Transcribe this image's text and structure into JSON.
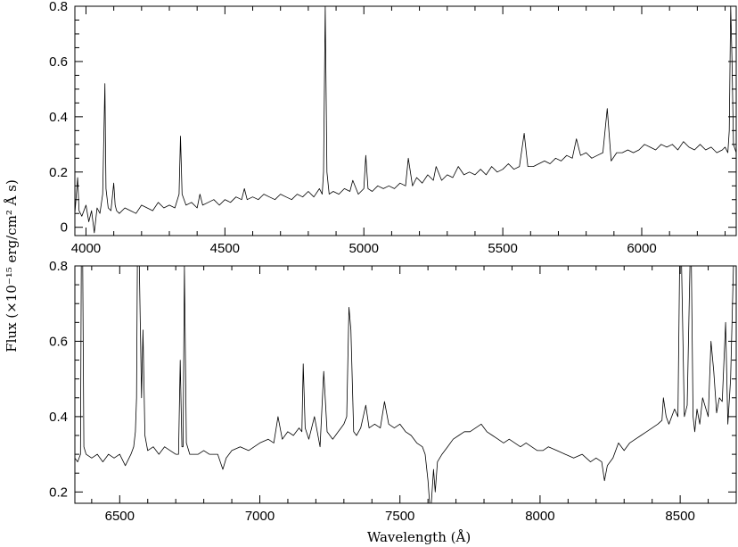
{
  "chart_data": {
    "type": "line",
    "ylabel": "Flux (×10⁻¹⁵ erg/cm² Å s)",
    "xlabel": "Wavelength (Å)",
    "panels": [
      {
        "xlim": [
          3960,
          6340
        ],
        "ylim": [
          -0.03,
          0.8
        ],
        "xticks": [
          4000,
          4500,
          5000,
          5500,
          6000
        ],
        "yticks": [
          0,
          0.2,
          0.4,
          0.6,
          0.8
        ],
        "ytick_labels": [
          "0",
          "0.2",
          "0.4",
          "0.6",
          "0.8"
        ],
        "series": [
          {
            "x": [
              3960,
              3970,
              3975,
              3985,
              4000,
              4010,
              4020,
              4030,
              4040,
              4050,
              4060,
              4068,
              4072,
              4080,
              4090,
              4100,
              4105,
              4110,
              4120,
              4140,
              4160,
              4180,
              4200,
              4220,
              4240,
              4260,
              4280,
              4300,
              4320,
              4335,
              4340,
              4346,
              4360,
              4380,
              4400,
              4410,
              4420,
              4440,
              4460,
              4480,
              4500,
              4520,
              4540,
              4560,
              4570,
              4580,
              4600,
              4620,
              4640,
              4660,
              4680,
              4700,
              4720,
              4740,
              4760,
              4780,
              4800,
              4820,
              4840,
              4850,
              4855,
              4861,
              4867,
              4875,
              4890,
              4910,
              4930,
              4950,
              4960,
              4980,
              5000,
              5007,
              5015,
              5030,
              5050,
              5070,
              5090,
              5110,
              5130,
              5150,
              5160,
              5175,
              5190,
              5210,
              5230,
              5250,
              5260,
              5280,
              5300,
              5320,
              5340,
              5360,
              5380,
              5400,
              5420,
              5440,
              5460,
              5480,
              5500,
              5520,
              5540,
              5560,
              5577,
              5590,
              5610,
              5630,
              5650,
              5670,
              5690,
              5710,
              5730,
              5750,
              5765,
              5780,
              5800,
              5820,
              5840,
              5860,
              5876,
              5890,
              5910,
              5930,
              5950,
              5970,
              5990,
              6010,
              6030,
              6050,
              6070,
              6090,
              6110,
              6130,
              6150,
              6170,
              6190,
              6210,
              6230,
              6250,
              6270,
              6290,
              6300,
              6310,
              6315,
              6320,
              6325,
              6330,
              6340
            ],
            "y": [
              0.05,
              0.18,
              0.06,
              0.04,
              0.08,
              0.02,
              0.06,
              -0.02,
              0.07,
              0.05,
              0.12,
              0.52,
              0.14,
              0.07,
              0.06,
              0.16,
              0.08,
              0.06,
              0.05,
              0.07,
              0.06,
              0.05,
              0.08,
              0.07,
              0.06,
              0.09,
              0.07,
              0.08,
              0.07,
              0.12,
              0.33,
              0.12,
              0.08,
              0.09,
              0.07,
              0.12,
              0.08,
              0.09,
              0.1,
              0.08,
              0.1,
              0.09,
              0.11,
              0.1,
              0.14,
              0.1,
              0.11,
              0.1,
              0.12,
              0.11,
              0.1,
              0.12,
              0.11,
              0.1,
              0.12,
              0.11,
              0.13,
              0.11,
              0.14,
              0.12,
              0.2,
              0.8,
              0.2,
              0.12,
              0.13,
              0.12,
              0.14,
              0.13,
              0.17,
              0.12,
              0.14,
              0.26,
              0.14,
              0.13,
              0.15,
              0.14,
              0.15,
              0.14,
              0.16,
              0.15,
              0.25,
              0.15,
              0.18,
              0.16,
              0.19,
              0.17,
              0.22,
              0.17,
              0.19,
              0.18,
              0.22,
              0.19,
              0.2,
              0.19,
              0.21,
              0.19,
              0.22,
              0.2,
              0.21,
              0.23,
              0.21,
              0.22,
              0.34,
              0.22,
              0.22,
              0.23,
              0.24,
              0.23,
              0.25,
              0.24,
              0.26,
              0.25,
              0.32,
              0.26,
              0.27,
              0.25,
              0.26,
              0.27,
              0.43,
              0.24,
              0.27,
              0.27,
              0.28,
              0.27,
              0.28,
              0.3,
              0.29,
              0.28,
              0.3,
              0.29,
              0.3,
              0.28,
              0.31,
              0.29,
              0.28,
              0.3,
              0.28,
              0.29,
              0.27,
              0.28,
              0.29,
              0.27,
              0.35,
              0.8,
              0.6,
              0.3,
              0.27
            ]
          }
        ]
      },
      {
        "xlim": [
          6340,
          8700
        ],
        "ylim": [
          0.17,
          0.8
        ],
        "xticks": [
          6500,
          7000,
          7500,
          8000,
          8500
        ],
        "yticks": [
          0.2,
          0.4,
          0.6,
          0.8
        ],
        "ytick_labels": [
          "0.2",
          "0.4",
          "0.6",
          "0.8"
        ],
        "series": [
          {
            "x": [
              6340,
              6350,
              6360,
              6363,
              6368,
              6372,
              6380,
              6400,
              6420,
              6440,
              6460,
              6480,
              6500,
              6520,
              6540,
              6550,
              6556,
              6560,
              6563,
              6570,
              6578,
              6583,
              6590,
              6600,
              6620,
              6640,
              6660,
              6680,
              6700,
              6710,
              6716,
              6722,
              6726,
              6731,
              6738,
              6750,
              6780,
              6800,
              6820,
              6850,
              6868,
              6880,
              6900,
              6930,
              6960,
              7000,
              7030,
              7050,
              7065,
              7080,
              7100,
              7120,
              7140,
              7150,
              7155,
              7162,
              7175,
              7195,
              7215,
              7228,
              7240,
              7260,
              7280,
              7300,
              7310,
              7318,
              7325,
              7335,
              7345,
              7360,
              7378,
              7390,
              7410,
              7430,
              7445,
              7460,
              7480,
              7500,
              7520,
              7540,
              7560,
              7580,
              7590,
              7600,
              7606,
              7612,
              7620,
              7626,
              7634,
              7650,
              7670,
              7690,
              7710,
              7730,
              7750,
              7770,
              7790,
              7810,
              7830,
              7850,
              7870,
              7890,
              7910,
              7930,
              7950,
              7970,
              7990,
              8010,
              8030,
              8060,
              8090,
              8120,
              8150,
              8180,
              8200,
              8220,
              8230,
              8240,
              8260,
              8280,
              8300,
              8320,
              8340,
              8360,
              8380,
              8400,
              8420,
              8435,
              8440,
              8450,
              8460,
              8480,
              8492,
              8498,
              8505,
              8515,
              8525,
              8535,
              8540,
              8546,
              8552,
              8560,
              8570,
              8580,
              8600,
              8610,
              8620,
              8630,
              8640,
              8650,
              8662,
              8670,
              8680,
              8690,
              8700
            ],
            "y": [
              0.29,
              0.28,
              0.3,
              0.8,
              0.8,
              0.32,
              0.3,
              0.29,
              0.3,
              0.28,
              0.3,
              0.29,
              0.3,
              0.27,
              0.3,
              0.32,
              0.36,
              0.45,
              0.8,
              0.8,
              0.45,
              0.63,
              0.35,
              0.31,
              0.32,
              0.3,
              0.32,
              0.31,
              0.3,
              0.3,
              0.55,
              0.32,
              0.32,
              0.8,
              0.33,
              0.3,
              0.3,
              0.31,
              0.3,
              0.3,
              0.26,
              0.29,
              0.31,
              0.32,
              0.31,
              0.33,
              0.34,
              0.33,
              0.4,
              0.34,
              0.36,
              0.35,
              0.37,
              0.36,
              0.54,
              0.37,
              0.34,
              0.4,
              0.32,
              0.52,
              0.36,
              0.34,
              0.36,
              0.38,
              0.4,
              0.69,
              0.63,
              0.36,
              0.35,
              0.37,
              0.43,
              0.37,
              0.38,
              0.37,
              0.44,
              0.38,
              0.37,
              0.38,
              0.36,
              0.35,
              0.33,
              0.32,
              0.3,
              0.23,
              0.17,
              0.15,
              0.26,
              0.2,
              0.28,
              0.3,
              0.32,
              0.34,
              0.35,
              0.36,
              0.36,
              0.37,
              0.38,
              0.36,
              0.35,
              0.34,
              0.33,
              0.34,
              0.33,
              0.32,
              0.33,
              0.32,
              0.31,
              0.31,
              0.32,
              0.31,
              0.3,
              0.29,
              0.3,
              0.28,
              0.29,
              0.28,
              0.23,
              0.27,
              0.29,
              0.33,
              0.31,
              0.33,
              0.34,
              0.35,
              0.36,
              0.37,
              0.38,
              0.39,
              0.45,
              0.4,
              0.38,
              0.42,
              0.4,
              0.8,
              0.8,
              0.4,
              0.43,
              0.8,
              0.8,
              0.4,
              0.36,
              0.42,
              0.38,
              0.45,
              0.4,
              0.6,
              0.52,
              0.41,
              0.45,
              0.44,
              0.65,
              0.38,
              0.5,
              0.8,
              0.8
            ]
          }
        ]
      }
    ]
  }
}
